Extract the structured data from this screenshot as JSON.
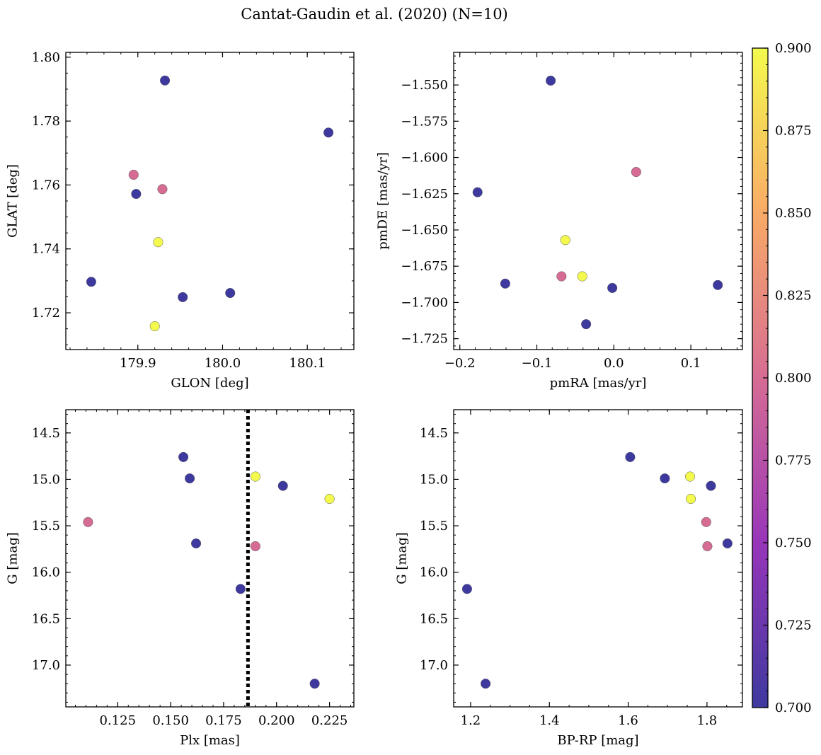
{
  "title": "Cantat-Gaudin et al. (2020) (N=10)",
  "colorbar": {
    "min": 0.7,
    "max": 0.9,
    "ticks": [
      0.7,
      0.725,
      0.75,
      0.775,
      0.8,
      0.825,
      0.85,
      0.875,
      0.9
    ],
    "tick_labels": [
      "0.700",
      "0.725",
      "0.750",
      "0.775",
      "0.800",
      "0.825",
      "0.850",
      "0.875",
      "0.900"
    ]
  },
  "members": [
    {
      "glon": 179.932,
      "glat": 1.7927,
      "pmra": -0.082,
      "pmde": -1.547,
      "plx": 0.156,
      "g": 14.76,
      "bprp": 1.605,
      "prob": 0.7
    },
    {
      "glon": 180.125,
      "glat": 1.7764,
      "pmra": 0.135,
      "pmde": -1.688,
      "plx": 0.203,
      "g": 15.07,
      "bprp": 1.81,
      "prob": 0.7
    },
    {
      "glon": 179.898,
      "glat": 1.7572,
      "pmra": -0.177,
      "pmde": -1.624,
      "plx": 0.159,
      "g": 14.99,
      "bprp": 1.693,
      "prob": 0.7
    },
    {
      "glon": 179.845,
      "glat": 1.7297,
      "pmra": -0.141,
      "pmde": -1.687,
      "plx": 0.162,
      "g": 15.69,
      "bprp": 1.852,
      "prob": 0.7
    },
    {
      "glon": 179.953,
      "glat": 1.7249,
      "pmra": -0.036,
      "pmde": -1.715,
      "plx": 0.183,
      "g": 16.18,
      "bprp": 1.191,
      "prob": 0.7
    },
    {
      "glon": 180.009,
      "glat": 1.7262,
      "pmra": -0.002,
      "pmde": -1.69,
      "plx": 0.218,
      "g": 17.2,
      "bprp": 1.238,
      "prob": 0.7
    },
    {
      "glon": 179.895,
      "glat": 1.7632,
      "pmra": 0.029,
      "pmde": -1.61,
      "plx": 0.111,
      "g": 15.46,
      "bprp": 1.798,
      "prob": 0.8
    },
    {
      "glon": 179.929,
      "glat": 1.7587,
      "pmra": -0.068,
      "pmde": -1.682,
      "plx": 0.19,
      "g": 15.72,
      "bprp": 1.801,
      "prob": 0.8
    },
    {
      "glon": 179.924,
      "glat": 1.7421,
      "pmra": -0.063,
      "pmde": -1.657,
      "plx": 0.19,
      "g": 14.97,
      "bprp": 1.757,
      "prob": 0.9
    },
    {
      "glon": 179.92,
      "glat": 1.7158,
      "pmra": -0.041,
      "pmde": -1.682,
      "plx": 0.225,
      "g": 15.21,
      "bprp": 1.759,
      "prob": 0.9
    }
  ],
  "chart_data": [
    {
      "type": "scatter",
      "id": "glon-glat",
      "xkey": "glon",
      "ykey": "glat",
      "xlabel": "GLON [deg]",
      "ylabel": "GLAT [deg]",
      "xlim": [
        179.815,
        180.155
      ],
      "ylim": [
        1.7085,
        1.8015
      ],
      "yinvert": false,
      "xticks": [
        179.9,
        180.0,
        180.1
      ],
      "xtick_labels": [
        "179.9",
        "180.0",
        "180.1"
      ],
      "yticks": [
        1.72,
        1.74,
        1.76,
        1.78,
        1.8
      ],
      "ytick_labels": [
        "1.72",
        "1.74",
        "1.76",
        "1.78",
        "1.80"
      ],
      "xminor": 0.02,
      "yminor": 0.005
    },
    {
      "type": "scatter",
      "id": "pmra-pmde",
      "xkey": "pmra",
      "ykey": "pmde",
      "xlabel": "pmRA [mas/yr]",
      "ylabel": "pmDE [mas/yr]",
      "xlim": [
        -0.208,
        0.167
      ],
      "ylim": [
        -1.7325,
        -1.5275
      ],
      "yinvert": false,
      "xticks": [
        -0.2,
        -0.1,
        0.0,
        0.1
      ],
      "xtick_labels": [
        "−0.2",
        "−0.1",
        "0.0",
        "0.1"
      ],
      "yticks": [
        -1.725,
        -1.7,
        -1.675,
        -1.65,
        -1.625,
        -1.6,
        -1.575,
        -1.55
      ],
      "ytick_labels": [
        "−1.725",
        "−1.700",
        "−1.675",
        "−1.650",
        "−1.625",
        "−1.600",
        "−1.575",
        "−1.550"
      ],
      "xminor": 0.02,
      "yminor": 0.005
    },
    {
      "type": "scatter",
      "id": "plx-g",
      "xkey": "plx",
      "ykey": "g",
      "xlabel": "Plx [mas]",
      "ylabel": "G [mag]",
      "xlim": [
        0.1005,
        0.2365
      ],
      "ylim": [
        14.25,
        17.45
      ],
      "yinvert": true,
      "xticks": [
        0.125,
        0.15,
        0.175,
        0.2,
        0.225
      ],
      "xtick_labels": [
        "0.125",
        "0.150",
        "0.175",
        "0.200",
        "0.225"
      ],
      "yticks": [
        14.5,
        15.0,
        15.5,
        16.0,
        16.5,
        17.0
      ],
      "ytick_labels": [
        "14.5",
        "15.0",
        "15.5",
        "16.0",
        "16.5",
        "17.0"
      ],
      "xminor": 0.005,
      "yminor": 0.1,
      "vline": {
        "x": 0.1865,
        "style": "dotted"
      }
    },
    {
      "type": "scatter",
      "id": "bprp-g",
      "xkey": "bprp",
      "ykey": "g",
      "xlabel": "BP-RP [mag]",
      "ylabel": "G [mag]",
      "xlim": [
        1.157,
        1.89
      ],
      "ylim": [
        14.25,
        17.45
      ],
      "yinvert": true,
      "xticks": [
        1.2,
        1.4,
        1.6,
        1.8
      ],
      "xtick_labels": [
        "1.2",
        "1.4",
        "1.6",
        "1.8"
      ],
      "yticks": [
        14.5,
        15.0,
        15.5,
        16.0,
        16.5,
        17.0
      ],
      "ytick_labels": [
        "14.5",
        "15.0",
        "15.5",
        "16.0",
        "16.5",
        "17.0"
      ],
      "xminor": 0.05,
      "yminor": 0.1
    }
  ]
}
